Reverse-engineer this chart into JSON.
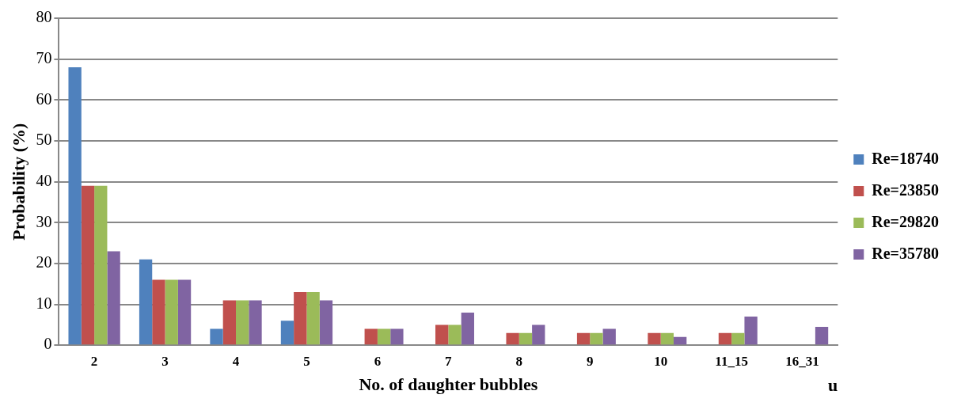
{
  "chart_data": {
    "type": "bar",
    "xlabel": "No. of daughter bubbles",
    "ylabel": "Probability (%)",
    "annotations": [
      "u"
    ],
    "categories": [
      "2",
      "3",
      "4",
      "5",
      "6",
      "7",
      "8",
      "9",
      "10",
      "11_15",
      "16_31"
    ],
    "series": [
      {
        "name": "Re=18740",
        "color": "#4f81bd",
        "values": [
          68,
          21,
          4,
          6,
          null,
          null,
          null,
          null,
          null,
          null,
          null
        ]
      },
      {
        "name": "Re=23850",
        "color": "#c0504d",
        "values": [
          39,
          16,
          11,
          13,
          4,
          5,
          3,
          3,
          3,
          3,
          null
        ]
      },
      {
        "name": "Re=29820",
        "color": "#9bbb59",
        "values": [
          39,
          16,
          11,
          13,
          4,
          5,
          3,
          3,
          3,
          3,
          null
        ]
      },
      {
        "name": "Re=35780",
        "color": "#8064a2",
        "values": [
          23,
          16,
          11,
          11,
          4,
          8,
          5,
          4,
          2,
          7,
          4.5
        ]
      }
    ],
    "ylim": [
      0,
      80
    ],
    "yticks": [
      0,
      10,
      20,
      30,
      40,
      50,
      60,
      70,
      80
    ],
    "grid": "y",
    "legend": "right"
  }
}
